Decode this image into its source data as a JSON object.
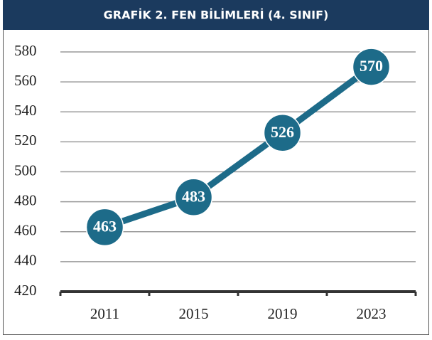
{
  "chart_data": {
    "type": "line",
    "title": "GRAFİK 2.  FEN BİLİMLERİ (4. SINIF)",
    "categories": [
      "2011",
      "2015",
      "2019",
      "2023"
    ],
    "values": [
      463,
      483,
      526,
      570
    ],
    "color": "#1d6b89",
    "ylim": [
      420,
      580
    ],
    "yticks": [
      420,
      440,
      460,
      480,
      500,
      520,
      540,
      560,
      580
    ],
    "grid": true
  }
}
